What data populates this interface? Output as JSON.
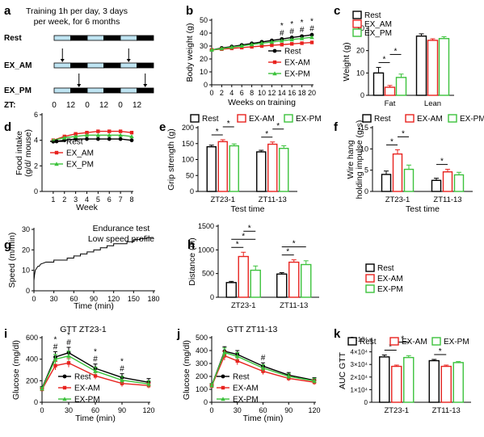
{
  "colors": {
    "rest": "#000000",
    "am": "#e8231f",
    "pm": "#3cc23c",
    "bar_edge": "#000000",
    "schedule_light": "#bfe4f2",
    "schedule_dark": "#000000"
  },
  "panel_a": {
    "letter": "a",
    "description": "Training 1h per day, 3 days per week, for 6 months",
    "rows": [
      "Rest",
      "EX_AM",
      "EX_PM"
    ],
    "zt_prefix": "ZT:",
    "zt_ticks": [
      "0",
      "12",
      "0",
      "12",
      "0",
      "12"
    ]
  },
  "chart_data": [
    {
      "id": "b",
      "type": "line",
      "xlabel": "Weeks on training",
      "ylabel": "Body weight (g)",
      "x": [
        0,
        2,
        4,
        6,
        8,
        10,
        12,
        14,
        16,
        18,
        20
      ],
      "xlim": [
        0,
        20
      ],
      "ylim": [
        0,
        50
      ],
      "xticks": [
        0,
        2,
        4,
        6,
        8,
        10,
        12,
        14,
        16,
        18,
        20
      ],
      "yticks": [
        0,
        10,
        20,
        30,
        40,
        50
      ],
      "series": [
        {
          "name": "Rest",
          "values": [
            27,
            28.5,
            29.6,
            30.8,
            32,
            33.2,
            34.3,
            35.4,
            36.6,
            37.6,
            38.7
          ]
        },
        {
          "name": "EX-AM",
          "values": [
            27,
            27.6,
            28.2,
            28.8,
            29.4,
            30,
            30.6,
            31.1,
            31.7,
            32.2,
            32.8
          ]
        },
        {
          "name": "EX-PM",
          "values": [
            27,
            28.1,
            29.1,
            30.1,
            31.2,
            32.2,
            33.1,
            34.1,
            35,
            35.9,
            36.8
          ]
        }
      ],
      "annotations": [
        {
          "x": 14,
          "marks": [
            "*",
            "#"
          ]
        },
        {
          "x": 16,
          "marks": [
            "*",
            "#"
          ]
        },
        {
          "x": 18,
          "marks": [
            "*",
            "#"
          ]
        },
        {
          "x": 20,
          "marks": [
            "*",
            "#"
          ]
        }
      ]
    },
    {
      "id": "c",
      "type": "bar",
      "ylabel": "Weight (g)",
      "categories": [
        "Fat",
        "Lean"
      ],
      "ylim": [
        0,
        30
      ],
      "yticks": [
        0,
        10,
        20,
        30
      ],
      "series": [
        {
          "name": "Rest",
          "values": [
            10,
            26.5
          ]
        },
        {
          "name": "EX_AM",
          "values": [
            3.6,
            24.6
          ]
        },
        {
          "name": "EX_PM",
          "values": [
            8,
            25.4
          ]
        }
      ],
      "errors": [
        [
          2.5,
          1
        ],
        [
          0.8,
          0.7
        ],
        [
          1.5,
          0.8
        ]
      ],
      "annotations": [
        {
          "category": "Fat",
          "pair": [
            "Rest",
            "EX_AM"
          ],
          "mark": "*"
        },
        {
          "category": "Fat",
          "pair": [
            "EX_AM",
            "EX_PM"
          ],
          "mark": "*"
        }
      ]
    },
    {
      "id": "d",
      "type": "line",
      "xlabel": "Week",
      "ylabel": "Food intake (g/d/ mouse)",
      "x": [
        1,
        2,
        3,
        4,
        5,
        6,
        7,
        8
      ],
      "xlim": [
        0,
        8
      ],
      "ylim": [
        0,
        6
      ],
      "xticks": [
        1,
        2,
        3,
        4,
        5,
        6,
        7,
        8
      ],
      "yticks": [
        0,
        2,
        4,
        6
      ],
      "series": [
        {
          "name": "Rest",
          "values": [
            3.9,
            4.0,
            4.1,
            4.1,
            4.1,
            4.1,
            4.1,
            4.0
          ]
        },
        {
          "name": "EX_AM",
          "values": [
            4.0,
            4.3,
            4.5,
            4.6,
            4.7,
            4.7,
            4.7,
            4.6
          ]
        },
        {
          "name": "EX_PM",
          "values": [
            4.0,
            4.2,
            4.3,
            4.4,
            4.4,
            4.4,
            4.4,
            4.3
          ]
        }
      ]
    },
    {
      "id": "e",
      "type": "bar",
      "xlabel": "Test time",
      "ylabel": "Grip strength (g)",
      "categories": [
        "ZT23-1",
        "ZT11-13"
      ],
      "ylim": [
        0,
        200
      ],
      "yticks": [
        0,
        50,
        100,
        150,
        200
      ],
      "series": [
        {
          "name": "Rest",
          "values": [
            140,
            124
          ]
        },
        {
          "name": "EX-AM",
          "values": [
            156,
            148
          ]
        },
        {
          "name": "EX-PM",
          "values": [
            143,
            135
          ]
        }
      ],
      "errors": [
        [
          5,
          5
        ],
        [
          6,
          7
        ],
        [
          6,
          8
        ]
      ],
      "annotations": [
        {
          "category": "ZT23-1",
          "pair": [
            "Rest",
            "EX-AM"
          ],
          "mark": "*"
        },
        {
          "category": "ZT23-1",
          "pair": [
            "EX-AM",
            "EX-PM"
          ],
          "mark": "*"
        },
        {
          "category": "ZT11-13",
          "pair": [
            "Rest",
            "EX-AM"
          ],
          "mark": "*"
        },
        {
          "category": "ZT11-13",
          "pair": [
            "EX-AM",
            "EX-PM"
          ],
          "mark": "*"
        }
      ]
    },
    {
      "id": "f",
      "type": "bar",
      "xlabel": "Test time",
      "ylabel": "Wire hang holding impulse (g•s)",
      "categories": [
        "ZT23-1",
        "ZT11-13"
      ],
      "ylim": [
        0,
        15
      ],
      "yticks": [
        0,
        5,
        10,
        15
      ],
      "series": [
        {
          "name": "Rest",
          "values": [
            4,
            2.6
          ]
        },
        {
          "name": "EX-AM",
          "values": [
            8.8,
            4.6
          ]
        },
        {
          "name": "EX-PM",
          "values": [
            5.2,
            3.9
          ]
        }
      ],
      "errors": [
        [
          0.8,
          0.5
        ],
        [
          1,
          0.6
        ],
        [
          1,
          0.6
        ]
      ],
      "annotations": [
        {
          "category": "ZT23-1",
          "pair": [
            "Rest",
            "EX-AM"
          ],
          "mark": "*"
        },
        {
          "category": "ZT23-1",
          "pair": [
            "EX-AM",
            "EX-PM"
          ],
          "mark": "*"
        },
        {
          "category": "ZT11-13",
          "pair": [
            "Rest",
            "EX-AM"
          ],
          "mark": "*"
        }
      ]
    },
    {
      "id": "g",
      "type": "line",
      "title": "Endurance test",
      "subtitle": "Low speed profile",
      "xlabel": "Time (min)",
      "ylabel": "Speed (m/min)",
      "xlim": [
        0,
        180
      ],
      "ylim": [
        0,
        30
      ],
      "xticks": [
        0,
        30,
        60,
        90,
        120,
        150,
        180
      ],
      "yticks": [
        0,
        10,
        20,
        30
      ],
      "series": [
        {
          "x": [
            0,
            1,
            2,
            4,
            6,
            8,
            10,
            14,
            18,
            22,
            30,
            30,
            50,
            50,
            60,
            60,
            70,
            70,
            80,
            80,
            90,
            90,
            100,
            100,
            110,
            110,
            120,
            120,
            130,
            130,
            140,
            140,
            150,
            150,
            160,
            160,
            170,
            170,
            180
          ],
          "values": [
            5,
            8,
            10,
            11,
            12,
            12,
            13,
            13.5,
            14,
            14,
            14,
            15,
            15,
            16,
            16,
            17,
            17,
            18,
            18,
            19,
            19,
            20,
            20,
            21,
            21,
            22,
            22,
            23,
            23,
            23,
            23,
            24,
            24,
            25,
            25,
            25.5,
            25.5,
            26,
            26
          ]
        }
      ]
    },
    {
      "id": "h",
      "type": "bar",
      "xlabel": "",
      "ylabel": "Distance (m)",
      "categories": [
        "ZT23-1",
        "ZT11-13"
      ],
      "ylim": [
        0,
        1500
      ],
      "yticks": [
        0,
        500,
        1000,
        1500
      ],
      "series": [
        {
          "name": "Rest",
          "values": [
            310,
            490
          ]
        },
        {
          "name": "EX-AM",
          "values": [
            860,
            740
          ]
        },
        {
          "name": "EX-PM",
          "values": [
            570,
            690
          ]
        }
      ],
      "errors": [
        [
          25,
          30
        ],
        [
          90,
          50
        ],
        [
          90,
          80
        ]
      ],
      "annotations": [
        {
          "category": "ZT23-1",
          "pair": [
            "Rest",
            "EX-AM"
          ],
          "mark": "*"
        },
        {
          "category": "ZT23-1",
          "pair": [
            "Rest",
            "EX-PM"
          ],
          "mark": "*"
        },
        {
          "category": "ZT23-1",
          "pair": [
            "EX-AM",
            "EX-PM"
          ],
          "mark": "*"
        },
        {
          "category": "ZT11-13",
          "pair": [
            "Rest",
            "EX-AM"
          ],
          "mark": "*"
        },
        {
          "category": "ZT11-13",
          "pair": [
            "Rest",
            "EX-PM"
          ],
          "mark": "*"
        }
      ]
    },
    {
      "id": "i",
      "type": "line",
      "title": "GTT ZT23-1",
      "xlabel": "Time (min)",
      "ylabel": "Glucose (mg/dl)",
      "x": [
        0,
        15,
        30,
        60,
        90,
        120
      ],
      "xlim": [
        0,
        120
      ],
      "ylim": [
        0,
        600
      ],
      "xticks": [
        0,
        30,
        60,
        90,
        120
      ],
      "yticks": [
        0,
        200,
        400,
        600
      ],
      "series": [
        {
          "name": "Rest",
          "values": [
            130,
            420,
            460,
            315,
            230,
            185
          ],
          "errors": [
            15,
            50,
            50,
            40,
            35,
            35
          ]
        },
        {
          "name": "EX-AM",
          "values": [
            120,
            340,
            365,
            245,
            175,
            155
          ],
          "errors": [
            15,
            40,
            40,
            30,
            30,
            25
          ]
        },
        {
          "name": "EX-PM",
          "values": [
            125,
            400,
            430,
            290,
            205,
            170
          ],
          "errors": [
            15,
            45,
            45,
            35,
            35,
            30
          ]
        }
      ],
      "annotations": [
        {
          "x": 15,
          "marks": [
            "*",
            "#"
          ]
        },
        {
          "x": 30,
          "marks": [
            "*",
            "#"
          ]
        },
        {
          "x": 60,
          "marks": [
            "*",
            "#"
          ]
        },
        {
          "x": 90,
          "marks": [
            "*",
            "#"
          ]
        }
      ]
    },
    {
      "id": "j",
      "type": "line",
      "title": "GTT ZT11-13",
      "xlabel": "Time (min)",
      "ylabel": "Glucose (mg/dl)",
      "x": [
        0,
        15,
        30,
        60,
        90,
        120
      ],
      "xlim": [
        0,
        120
      ],
      "ylim": [
        0,
        500
      ],
      "xticks": [
        0,
        30,
        60,
        90,
        120
      ],
      "yticks": [
        0,
        100,
        200,
        300,
        400,
        500
      ],
      "series": [
        {
          "name": "Rest",
          "values": [
            130,
            395,
            370,
            280,
            210,
            170
          ],
          "errors": [
            15,
            35,
            30,
            25,
            20,
            20
          ]
        },
        {
          "name": "EX-AM",
          "values": [
            125,
            360,
            320,
            240,
            185,
            155
          ],
          "errors": [
            15,
            35,
            30,
            25,
            20,
            20
          ]
        },
        {
          "name": "EX-PM",
          "values": [
            130,
            385,
            355,
            265,
            200,
            165
          ],
          "errors": [
            15,
            35,
            30,
            25,
            20,
            20
          ]
        }
      ],
      "annotations": [
        {
          "x": 60,
          "marks": [
            "#"
          ]
        }
      ]
    },
    {
      "id": "k",
      "type": "bar",
      "ylabel": "AUC GTT",
      "categories": [
        "ZT23-1",
        "ZT11-13"
      ],
      "ylim": [
        0,
        50000
      ],
      "yticks": [
        0,
        10000,
        20000,
        30000,
        40000,
        50000
      ],
      "ytick_labels": [
        "0",
        "1×10⁴",
        "2×10⁴",
        "3×10⁴",
        "4×10⁴",
        "5×10⁴"
      ],
      "series": [
        {
          "name": "Rest",
          "values": [
            36000,
            33000
          ]
        },
        {
          "name": "EX-AM",
          "values": [
            28500,
            28500
          ]
        },
        {
          "name": "EX-PM",
          "values": [
            35500,
            31500
          ]
        }
      ],
      "errors": [
        [
          1500,
          1000
        ],
        [
          1000,
          1000
        ],
        [
          1500,
          800
        ]
      ],
      "annotations": [
        {
          "category": "ZT23-1",
          "pair": [
            "Rest",
            "EX-AM"
          ],
          "mark": "*"
        },
        {
          "category": "ZT23-1",
          "pair": [
            "EX-AM",
            "EX-PM"
          ],
          "mark": "*"
        },
        {
          "category": "ZT11-13",
          "pair": [
            "Rest",
            "EX-AM"
          ],
          "mark": "*"
        }
      ]
    }
  ]
}
